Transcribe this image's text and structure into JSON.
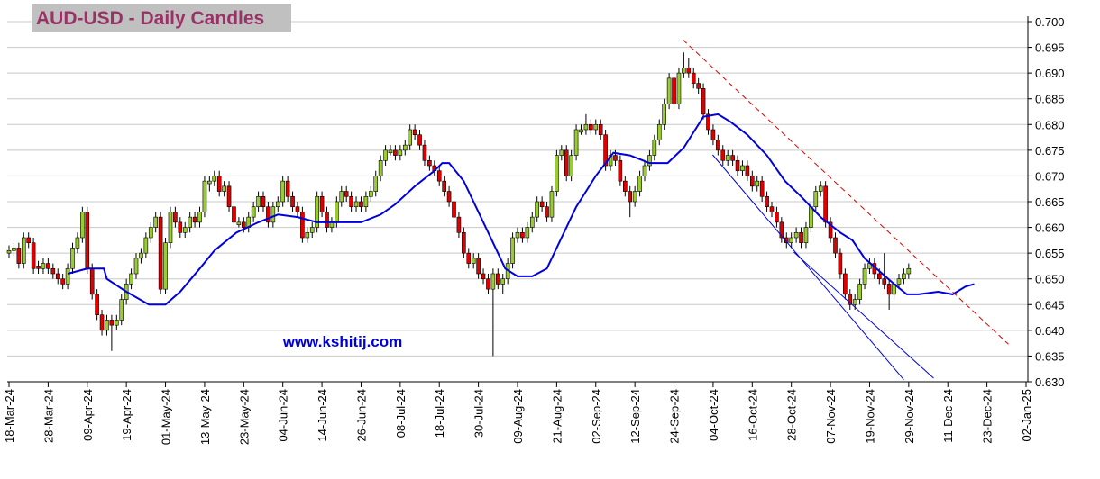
{
  "chart_data": {
    "type": "candlestick",
    "title": "AUD-USD - Daily Candles",
    "annotation": "www.kshitij.com",
    "up_color": "#99cc33",
    "down_color": "#e00000",
    "grid": true,
    "xlim": [
      -0.37,
      208.37
    ],
    "ylim": [
      0.63,
      0.7
    ],
    "yticks": [
      {
        "value": 0.63,
        "label": "0.630"
      },
      {
        "value": 0.635,
        "label": "0.635"
      },
      {
        "value": 0.64,
        "label": "0.640"
      },
      {
        "value": 0.645,
        "label": "0.645"
      },
      {
        "value": 0.65,
        "label": "0.650"
      },
      {
        "value": 0.655,
        "label": "0.655"
      },
      {
        "value": 0.66,
        "label": "0.660"
      },
      {
        "value": 0.665,
        "label": "0.665"
      },
      {
        "value": 0.67,
        "label": "0.670"
      },
      {
        "value": 0.675,
        "label": "0.675"
      },
      {
        "value": 0.68,
        "label": "0.680"
      },
      {
        "value": 0.685,
        "label": "0.685"
      },
      {
        "value": 0.69,
        "label": "0.690"
      },
      {
        "value": 0.695,
        "label": "0.695"
      },
      {
        "value": 0.7,
        "label": "0.700"
      }
    ],
    "xticks": [
      {
        "value": 0,
        "label": "18-Mar-24"
      },
      {
        "value": 8,
        "label": "28-Mar-24"
      },
      {
        "value": 16,
        "label": "09-Apr-24"
      },
      {
        "value": 24,
        "label": "19-Apr-24"
      },
      {
        "value": 32,
        "label": "01-May-24"
      },
      {
        "value": 40,
        "label": "13-May-24"
      },
      {
        "value": 48,
        "label": "23-May-24"
      },
      {
        "value": 56,
        "label": "04-Jun-24"
      },
      {
        "value": 64,
        "label": "14-Jun-24"
      },
      {
        "value": 72,
        "label": "26-Jun-24"
      },
      {
        "value": 80,
        "label": "08-Jul-24"
      },
      {
        "value": 88,
        "label": "18-Jul-24"
      },
      {
        "value": 96,
        "label": "30-Jul-24"
      },
      {
        "value": 104,
        "label": "09-Aug-24"
      },
      {
        "value": 112,
        "label": "21-Aug-24"
      },
      {
        "value": 120,
        "label": "02-Sep-24"
      },
      {
        "value": 128,
        "label": "12-Sep-24"
      },
      {
        "value": 136,
        "label": "24-Sep-24"
      },
      {
        "value": 144,
        "label": "04-Oct-24"
      },
      {
        "value": 152,
        "label": "16-Oct-24"
      },
      {
        "value": 160,
        "label": "28-Oct-24"
      },
      {
        "value": 168,
        "label": "07-Nov-24"
      },
      {
        "value": 176,
        "label": "19-Nov-24"
      },
      {
        "value": 184,
        "label": "29-Nov-24"
      },
      {
        "value": 192,
        "label": "11-Dec-24"
      },
      {
        "value": 200,
        "label": "23-Dec-24"
      },
      {
        "value": 208,
        "label": "02-Jan-25"
      }
    ],
    "candles": [
      [
        0.655,
        0.6565,
        0.654,
        0.6555
      ],
      [
        0.6555,
        0.657,
        0.6545,
        0.656
      ],
      [
        0.656,
        0.657,
        0.652,
        0.653
      ],
      [
        0.653,
        0.659,
        0.652,
        0.658
      ],
      [
        0.658,
        0.659,
        0.656,
        0.657
      ],
      [
        0.657,
        0.658,
        0.651,
        0.652
      ],
      [
        0.6525,
        0.6535,
        0.651,
        0.652
      ],
      [
        0.652,
        0.654,
        0.651,
        0.653
      ],
      [
        0.653,
        0.654,
        0.651,
        0.652
      ],
      [
        0.652,
        0.653,
        0.65,
        0.651
      ],
      [
        0.651,
        0.652,
        0.649,
        0.65
      ],
      [
        0.65,
        0.651,
        0.648,
        0.649
      ],
      [
        0.649,
        0.653,
        0.648,
        0.652
      ],
      [
        0.652,
        0.657,
        0.651,
        0.656
      ],
      [
        0.656,
        0.659,
        0.655,
        0.658
      ],
      [
        0.658,
        0.664,
        0.657,
        0.663
      ],
      [
        0.663,
        0.664,
        0.651,
        0.652
      ],
      [
        0.652,
        0.653,
        0.646,
        0.647
      ],
      [
        0.647,
        0.648,
        0.642,
        0.643
      ],
      [
        0.643,
        0.644,
        0.639,
        0.64
      ],
      [
        0.64,
        0.643,
        0.639,
        0.642
      ],
      [
        0.642,
        0.643,
        0.636,
        0.641
      ],
      [
        0.641,
        0.643,
        0.64,
        0.642
      ],
      [
        0.642,
        0.647,
        0.641,
        0.646
      ],
      [
        0.646,
        0.65,
        0.645,
        0.649
      ],
      [
        0.649,
        0.652,
        0.648,
        0.651
      ],
      [
        0.651,
        0.655,
        0.65,
        0.654
      ],
      [
        0.654,
        0.656,
        0.653,
        0.655
      ],
      [
        0.655,
        0.659,
        0.654,
        0.658
      ],
      [
        0.658,
        0.661,
        0.657,
        0.66
      ],
      [
        0.66,
        0.663,
        0.659,
        0.662
      ],
      [
        0.662,
        0.663,
        0.647,
        0.648
      ],
      [
        0.648,
        0.658,
        0.647,
        0.657
      ],
      [
        0.657,
        0.664,
        0.656,
        0.663
      ],
      [
        0.663,
        0.664,
        0.66,
        0.661
      ],
      [
        0.661,
        0.662,
        0.658,
        0.659
      ],
      [
        0.659,
        0.661,
        0.658,
        0.66
      ],
      [
        0.66,
        0.663,
        0.659,
        0.662
      ],
      [
        0.662,
        0.663,
        0.66,
        0.661
      ],
      [
        0.661,
        0.664,
        0.66,
        0.663
      ],
      [
        0.663,
        0.67,
        0.662,
        0.669
      ],
      [
        0.6685,
        0.67,
        0.667,
        0.669
      ],
      [
        0.669,
        0.671,
        0.668,
        0.67
      ],
      [
        0.67,
        0.671,
        0.666,
        0.667
      ],
      [
        0.667,
        0.669,
        0.666,
        0.668
      ],
      [
        0.668,
        0.669,
        0.663,
        0.664
      ],
      [
        0.664,
        0.665,
        0.66,
        0.661
      ],
      [
        0.6605,
        0.662,
        0.66,
        0.661
      ],
      [
        0.661,
        0.662,
        0.659,
        0.66
      ],
      [
        0.66,
        0.663,
        0.659,
        0.662
      ],
      [
        0.662,
        0.665,
        0.661,
        0.664
      ],
      [
        0.664,
        0.667,
        0.663,
        0.666
      ],
      [
        0.666,
        0.667,
        0.663,
        0.664
      ],
      [
        0.664,
        0.665,
        0.66,
        0.661
      ],
      [
        0.661,
        0.665,
        0.66,
        0.664
      ],
      [
        0.664,
        0.666,
        0.663,
        0.665
      ],
      [
        0.665,
        0.67,
        0.664,
        0.669
      ],
      [
        0.669,
        0.67,
        0.665,
        0.666
      ],
      [
        0.666,
        0.667,
        0.663,
        0.664
      ],
      [
        0.664,
        0.665,
        0.662,
        0.663
      ],
      [
        0.663,
        0.664,
        0.657,
        0.658
      ],
      [
        0.658,
        0.66,
        0.657,
        0.659
      ],
      [
        0.659,
        0.661,
        0.658,
        0.66
      ],
      [
        0.66,
        0.667,
        0.659,
        0.666
      ],
      [
        0.666,
        0.667,
        0.662,
        0.663
      ],
      [
        0.663,
        0.664,
        0.659,
        0.66
      ],
      [
        0.66,
        0.662,
        0.659,
        0.661
      ],
      [
        0.661,
        0.666,
        0.66,
        0.665
      ],
      [
        0.665,
        0.668,
        0.664,
        0.667
      ],
      [
        0.667,
        0.668,
        0.665,
        0.666
      ],
      [
        0.666,
        0.667,
        0.663,
        0.664
      ],
      [
        0.664,
        0.666,
        0.663,
        0.665
      ],
      [
        0.665,
        0.666,
        0.663,
        0.664
      ],
      [
        0.664,
        0.667,
        0.663,
        0.666
      ],
      [
        0.666,
        0.668,
        0.665,
        0.667
      ],
      [
        0.667,
        0.671,
        0.666,
        0.67
      ],
      [
        0.67,
        0.674,
        0.669,
        0.673
      ],
      [
        0.673,
        0.676,
        0.672,
        0.675
      ],
      [
        0.6745,
        0.676,
        0.674,
        0.675
      ],
      [
        0.675,
        0.676,
        0.673,
        0.674
      ],
      [
        0.674,
        0.676,
        0.673,
        0.675
      ],
      [
        0.675,
        0.677,
        0.674,
        0.676
      ],
      [
        0.676,
        0.68,
        0.675,
        0.679
      ],
      [
        0.679,
        0.68,
        0.677,
        0.678
      ],
      [
        0.678,
        0.679,
        0.675,
        0.676
      ],
      [
        0.676,
        0.677,
        0.672,
        0.673
      ],
      [
        0.673,
        0.674,
        0.671,
        0.672
      ],
      [
        0.672,
        0.673,
        0.67,
        0.671
      ],
      [
        0.671,
        0.672,
        0.668,
        0.669
      ],
      [
        0.669,
        0.67,
        0.666,
        0.667
      ],
      [
        0.667,
        0.668,
        0.664,
        0.665
      ],
      [
        0.665,
        0.666,
        0.661,
        0.662
      ],
      [
        0.662,
        0.663,
        0.658,
        0.659
      ],
      [
        0.659,
        0.66,
        0.654,
        0.655
      ],
      [
        0.655,
        0.656,
        0.652,
        0.653
      ],
      [
        0.653,
        0.655,
        0.652,
        0.654
      ],
      [
        0.654,
        0.655,
        0.65,
        0.651
      ],
      [
        0.651,
        0.652,
        0.649,
        0.65
      ],
      [
        0.65,
        0.651,
        0.647,
        0.648
      ],
      [
        0.648,
        0.652,
        0.635,
        0.651
      ],
      [
        0.651,
        0.652,
        0.648,
        0.649
      ],
      [
        0.649,
        0.651,
        0.647,
        0.65
      ],
      [
        0.65,
        0.654,
        0.649,
        0.653
      ],
      [
        0.653,
        0.659,
        0.652,
        0.658
      ],
      [
        0.658,
        0.66,
        0.657,
        0.659
      ],
      [
        0.659,
        0.66,
        0.657,
        0.658
      ],
      [
        0.658,
        0.661,
        0.657,
        0.66
      ],
      [
        0.66,
        0.663,
        0.659,
        0.662
      ],
      [
        0.662,
        0.666,
        0.661,
        0.665
      ],
      [
        0.665,
        0.666,
        0.663,
        0.664
      ],
      [
        0.664,
        0.665,
        0.661,
        0.662
      ],
      [
        0.662,
        0.668,
        0.661,
        0.667
      ],
      [
        0.667,
        0.675,
        0.666,
        0.674
      ],
      [
        0.674,
        0.676,
        0.673,
        0.675
      ],
      [
        0.675,
        0.676,
        0.669,
        0.67
      ],
      [
        0.67,
        0.675,
        0.669,
        0.674
      ],
      [
        0.674,
        0.68,
        0.673,
        0.679
      ],
      [
        0.6785,
        0.68,
        0.678,
        0.679
      ],
      [
        0.679,
        0.682,
        0.678,
        0.68
      ],
      [
        0.68,
        0.681,
        0.678,
        0.679
      ],
      [
        0.679,
        0.681,
        0.678,
        0.68
      ],
      [
        0.68,
        0.681,
        0.677,
        0.678
      ],
      [
        0.678,
        0.679,
        0.671,
        0.672
      ],
      [
        0.672,
        0.675,
        0.671,
        0.674
      ],
      [
        0.674,
        0.675,
        0.672,
        0.673
      ],
      [
        0.673,
        0.674,
        0.668,
        0.669
      ],
      [
        0.669,
        0.67,
        0.666,
        0.667
      ],
      [
        0.667,
        0.668,
        0.662,
        0.665
      ],
      [
        0.665,
        0.668,
        0.664,
        0.667
      ],
      [
        0.667,
        0.671,
        0.666,
        0.67
      ],
      [
        0.67,
        0.673,
        0.669,
        0.672
      ],
      [
        0.672,
        0.675,
        0.671,
        0.674
      ],
      [
        0.674,
        0.678,
        0.673,
        0.677
      ],
      [
        0.677,
        0.681,
        0.676,
        0.68
      ],
      [
        0.68,
        0.685,
        0.679,
        0.684
      ],
      [
        0.684,
        0.69,
        0.683,
        0.689
      ],
      [
        0.689,
        0.69,
        0.683,
        0.684
      ],
      [
        0.684,
        0.691,
        0.683,
        0.69
      ],
      [
        0.69,
        0.694,
        0.689,
        0.691
      ],
      [
        0.691,
        0.693,
        0.689,
        0.69
      ],
      [
        0.69,
        0.691,
        0.687,
        0.688
      ],
      [
        0.688,
        0.689,
        0.686,
        0.687
      ],
      [
        0.687,
        0.688,
        0.681,
        0.682
      ],
      [
        0.682,
        0.683,
        0.678,
        0.679
      ],
      [
        0.679,
        0.68,
        0.676,
        0.677
      ],
      [
        0.677,
        0.678,
        0.674,
        0.675
      ],
      [
        0.675,
        0.676,
        0.672,
        0.673
      ],
      [
        0.673,
        0.675,
        0.672,
        0.674
      ],
      [
        0.674,
        0.675,
        0.672,
        0.673
      ],
      [
        0.673,
        0.674,
        0.67,
        0.671
      ],
      [
        0.671,
        0.673,
        0.67,
        0.672
      ],
      [
        0.672,
        0.673,
        0.669,
        0.67
      ],
      [
        0.67,
        0.671,
        0.667,
        0.668
      ],
      [
        0.668,
        0.67,
        0.667,
        0.669
      ],
      [
        0.669,
        0.67,
        0.665,
        0.666
      ],
      [
        0.666,
        0.667,
        0.663,
        0.664
      ],
      [
        0.664,
        0.665,
        0.662,
        0.663
      ],
      [
        0.663,
        0.664,
        0.66,
        0.661
      ],
      [
        0.661,
        0.662,
        0.657,
        0.658
      ],
      [
        0.658,
        0.659,
        0.656,
        0.657
      ],
      [
        0.657,
        0.659,
        0.656,
        0.658
      ],
      [
        0.658,
        0.66,
        0.657,
        0.659
      ],
      [
        0.659,
        0.66,
        0.656,
        0.657
      ],
      [
        0.657,
        0.661,
        0.656,
        0.66
      ],
      [
        0.66,
        0.665,
        0.659,
        0.664
      ],
      [
        0.664,
        0.668,
        0.663,
        0.667
      ],
      [
        0.667,
        0.669,
        0.666,
        0.668
      ],
      [
        0.668,
        0.669,
        0.66,
        0.661
      ],
      [
        0.661,
        0.662,
        0.657,
        0.658
      ],
      [
        0.658,
        0.659,
        0.654,
        0.655
      ],
      [
        0.655,
        0.656,
        0.65,
        0.651
      ],
      [
        0.651,
        0.652,
        0.646,
        0.647
      ],
      [
        0.647,
        0.648,
        0.644,
        0.645
      ],
      [
        0.645,
        0.647,
        0.644,
        0.646
      ],
      [
        0.646,
        0.65,
        0.645,
        0.649
      ],
      [
        0.649,
        0.653,
        0.648,
        0.652
      ],
      [
        0.652,
        0.654,
        0.651,
        0.653
      ],
      [
        0.653,
        0.654,
        0.65,
        0.651
      ],
      [
        0.651,
        0.652,
        0.649,
        0.65
      ],
      [
        0.65,
        0.655,
        0.648,
        0.649
      ],
      [
        0.649,
        0.65,
        0.644,
        0.647
      ],
      [
        0.647,
        0.65,
        0.646,
        0.649
      ],
      [
        0.649,
        0.651,
        0.648,
        0.65
      ],
      [
        0.65,
        0.652,
        0.649,
        0.651
      ],
      [
        0.651,
        0.653,
        0.65,
        0.652
      ]
    ],
    "moving_average": {
      "color": "#0000dd",
      "x": [
        12,
        16,
        19.4,
        20,
        24,
        28.6,
        32,
        35,
        39,
        42,
        46.5,
        51,
        55,
        59,
        63,
        68,
        72,
        76,
        79,
        83,
        87,
        88.6,
        90,
        93,
        96,
        99,
        101.5,
        104,
        107,
        110,
        112.5,
        116,
        120,
        123.6,
        127,
        131,
        134.7,
        138,
        142,
        145,
        147.6,
        151,
        155,
        158.7,
        162,
        166,
        170,
        172.5,
        175,
        178,
        181,
        183.6,
        186,
        190,
        193,
        195.6,
        197.4
      ],
      "values": [
        0.651,
        0.652,
        0.652,
        0.65,
        0.6475,
        0.645,
        0.645,
        0.6475,
        0.652,
        0.6555,
        0.659,
        0.661,
        0.6625,
        0.662,
        0.661,
        0.661,
        0.661,
        0.6625,
        0.6645,
        0.668,
        0.671,
        0.6725,
        0.6725,
        0.669,
        0.663,
        0.657,
        0.652,
        0.6505,
        0.6505,
        0.652,
        0.657,
        0.664,
        0.67,
        0.6745,
        0.674,
        0.6725,
        0.6725,
        0.6755,
        0.6815,
        0.682,
        0.6805,
        0.678,
        0.674,
        0.669,
        0.666,
        0.662,
        0.659,
        0.6575,
        0.654,
        0.6515,
        0.649,
        0.647,
        0.647,
        0.6475,
        0.647,
        0.6485,
        0.649
      ]
    },
    "trend_lines": [
      {
        "color": "#e00000",
        "dashed": true,
        "x": [
          137.8,
          204.4
        ],
        "values": [
          0.6965,
          0.6373
        ]
      },
      {
        "color": "#0000dd",
        "dashed": false,
        "x": [
          143.9,
          183.0
        ],
        "values": [
          0.6741,
          0.6304
        ]
      },
      {
        "color": "#0000dd",
        "dashed": false,
        "x": [
          160.5,
          189.1
        ],
        "values": [
          0.6552,
          0.6307
        ]
      }
    ]
  }
}
